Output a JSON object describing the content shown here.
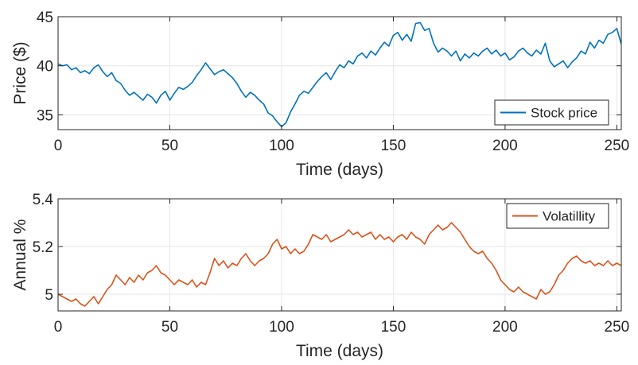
{
  "chart_data": [
    {
      "type": "line",
      "title": "",
      "xlabel": "Time (days)",
      "ylabel": "Price ($)",
      "xlim": [
        0,
        252
      ],
      "ylim": [
        33.5,
        45
      ],
      "xticks": [
        0,
        50,
        100,
        150,
        200,
        250
      ],
      "yticks": [
        35,
        40,
        45
      ],
      "grid": true,
      "legend_position": "bottom-right",
      "series": [
        {
          "name": "Stock price",
          "color": "#0072BD",
          "x": [
            0,
            2,
            4,
            6,
            8,
            10,
            12,
            14,
            16,
            18,
            20,
            22,
            24,
            26,
            28,
            30,
            32,
            34,
            36,
            38,
            40,
            42,
            44,
            46,
            48,
            50,
            52,
            54,
            56,
            58,
            60,
            62,
            64,
            66,
            68,
            70,
            72,
            74,
            76,
            78,
            80,
            82,
            84,
            86,
            88,
            90,
            92,
            94,
            96,
            98,
            100,
            102,
            104,
            106,
            108,
            110,
            112,
            114,
            116,
            118,
            120,
            122,
            124,
            126,
            128,
            130,
            132,
            134,
            136,
            138,
            140,
            142,
            144,
            146,
            148,
            150,
            152,
            154,
            156,
            158,
            160,
            162,
            164,
            166,
            168,
            170,
            172,
            174,
            176,
            178,
            180,
            182,
            184,
            186,
            188,
            190,
            192,
            194,
            196,
            198,
            200,
            202,
            204,
            206,
            208,
            210,
            212,
            214,
            216,
            218,
            220,
            222,
            224,
            226,
            228,
            230,
            232,
            234,
            236,
            238,
            240,
            242,
            244,
            246,
            248,
            250,
            252
          ],
          "values": [
            40.2,
            40.0,
            40.1,
            39.6,
            39.8,
            39.3,
            39.5,
            39.2,
            39.8,
            40.1,
            39.4,
            38.9,
            39.3,
            38.5,
            38.2,
            37.5,
            37.0,
            37.3,
            36.9,
            36.5,
            37.1,
            36.8,
            36.2,
            37.0,
            37.4,
            36.5,
            37.2,
            37.8,
            37.6,
            37.9,
            38.3,
            39.0,
            39.6,
            40.3,
            39.7,
            39.1,
            39.4,
            39.6,
            39.2,
            38.8,
            38.2,
            37.4,
            36.8,
            37.3,
            37.0,
            36.5,
            36.1,
            35.2,
            34.9,
            34.3,
            33.8,
            34.2,
            35.3,
            36.1,
            37.0,
            37.4,
            37.2,
            37.8,
            38.4,
            38.9,
            39.3,
            38.6,
            39.4,
            40.1,
            39.8,
            40.5,
            40.2,
            41.0,
            41.3,
            40.8,
            41.5,
            41.1,
            41.8,
            42.4,
            42.0,
            43.1,
            43.4,
            42.6,
            43.2,
            42.5,
            44.3,
            44.4,
            43.6,
            43.8,
            42.3,
            41.4,
            41.8,
            41.5,
            41.0,
            41.5,
            40.5,
            41.2,
            40.8,
            41.3,
            41.0,
            41.5,
            41.8,
            41.2,
            41.6,
            41.0,
            41.3,
            40.6,
            40.9,
            41.5,
            41.8,
            41.3,
            41.0,
            41.6,
            41.2,
            42.3,
            40.5,
            39.9,
            40.2,
            40.5,
            39.8,
            40.4,
            40.8,
            41.5,
            41.2,
            42.4,
            41.8,
            42.6,
            42.3,
            43.2,
            43.4,
            43.8,
            42.2
          ]
        }
      ]
    },
    {
      "type": "line",
      "title": "",
      "xlabel": "Time (days)",
      "ylabel": "Annual %",
      "xlim": [
        0,
        252
      ],
      "ylim": [
        4.93,
        5.4
      ],
      "xticks": [
        0,
        50,
        100,
        150,
        200,
        250
      ],
      "yticks": [
        5,
        5.2,
        5.4
      ],
      "ytick_labels": [
        "5",
        "5.2",
        "5.4"
      ],
      "grid": true,
      "legend_position": "top-right",
      "series": [
        {
          "name": "Volatillity",
          "color": "#D95319",
          "x": [
            0,
            2,
            4,
            6,
            8,
            10,
            12,
            14,
            16,
            18,
            20,
            22,
            24,
            26,
            28,
            30,
            32,
            34,
            36,
            38,
            40,
            42,
            44,
            46,
            48,
            50,
            52,
            54,
            56,
            58,
            60,
            62,
            64,
            66,
            68,
            70,
            72,
            74,
            76,
            78,
            80,
            82,
            84,
            86,
            88,
            90,
            92,
            94,
            96,
            98,
            100,
            102,
            104,
            106,
            108,
            110,
            112,
            114,
            116,
            118,
            120,
            122,
            124,
            126,
            128,
            130,
            132,
            134,
            136,
            138,
            140,
            142,
            144,
            146,
            148,
            150,
            152,
            154,
            156,
            158,
            160,
            162,
            164,
            166,
            168,
            170,
            172,
            174,
            176,
            178,
            180,
            182,
            184,
            186,
            188,
            190,
            192,
            194,
            196,
            198,
            200,
            202,
            204,
            206,
            208,
            210,
            212,
            214,
            216,
            218,
            220,
            222,
            224,
            226,
            228,
            230,
            232,
            234,
            236,
            238,
            240,
            242,
            244,
            246,
            248,
            250,
            252
          ],
          "values": [
            5.0,
            4.99,
            4.98,
            4.97,
            4.98,
            4.96,
            4.95,
            4.97,
            4.99,
            4.96,
            4.99,
            5.02,
            5.04,
            5.08,
            5.06,
            5.04,
            5.07,
            5.05,
            5.08,
            5.06,
            5.09,
            5.1,
            5.12,
            5.09,
            5.08,
            5.06,
            5.04,
            5.06,
            5.05,
            5.04,
            5.06,
            5.03,
            5.05,
            5.04,
            5.09,
            5.15,
            5.12,
            5.14,
            5.11,
            5.13,
            5.12,
            5.15,
            5.17,
            5.14,
            5.12,
            5.14,
            5.15,
            5.17,
            5.21,
            5.23,
            5.19,
            5.2,
            5.17,
            5.19,
            5.17,
            5.18,
            5.21,
            5.25,
            5.24,
            5.23,
            5.25,
            5.22,
            5.23,
            5.24,
            5.25,
            5.27,
            5.25,
            5.26,
            5.24,
            5.25,
            5.26,
            5.23,
            5.25,
            5.23,
            5.24,
            5.22,
            5.24,
            5.25,
            5.23,
            5.26,
            5.24,
            5.23,
            5.21,
            5.25,
            5.27,
            5.29,
            5.27,
            5.28,
            5.3,
            5.28,
            5.26,
            5.23,
            5.2,
            5.18,
            5.17,
            5.18,
            5.15,
            5.13,
            5.1,
            5.06,
            5.04,
            5.02,
            5.01,
            5.03,
            5.01,
            5.0,
            4.99,
            4.98,
            5.02,
            5.0,
            5.01,
            5.04,
            5.08,
            5.1,
            5.13,
            5.15,
            5.16,
            5.14,
            5.13,
            5.14,
            5.12,
            5.13,
            5.12,
            5.14,
            5.12,
            5.13,
            5.12
          ]
        }
      ]
    }
  ]
}
